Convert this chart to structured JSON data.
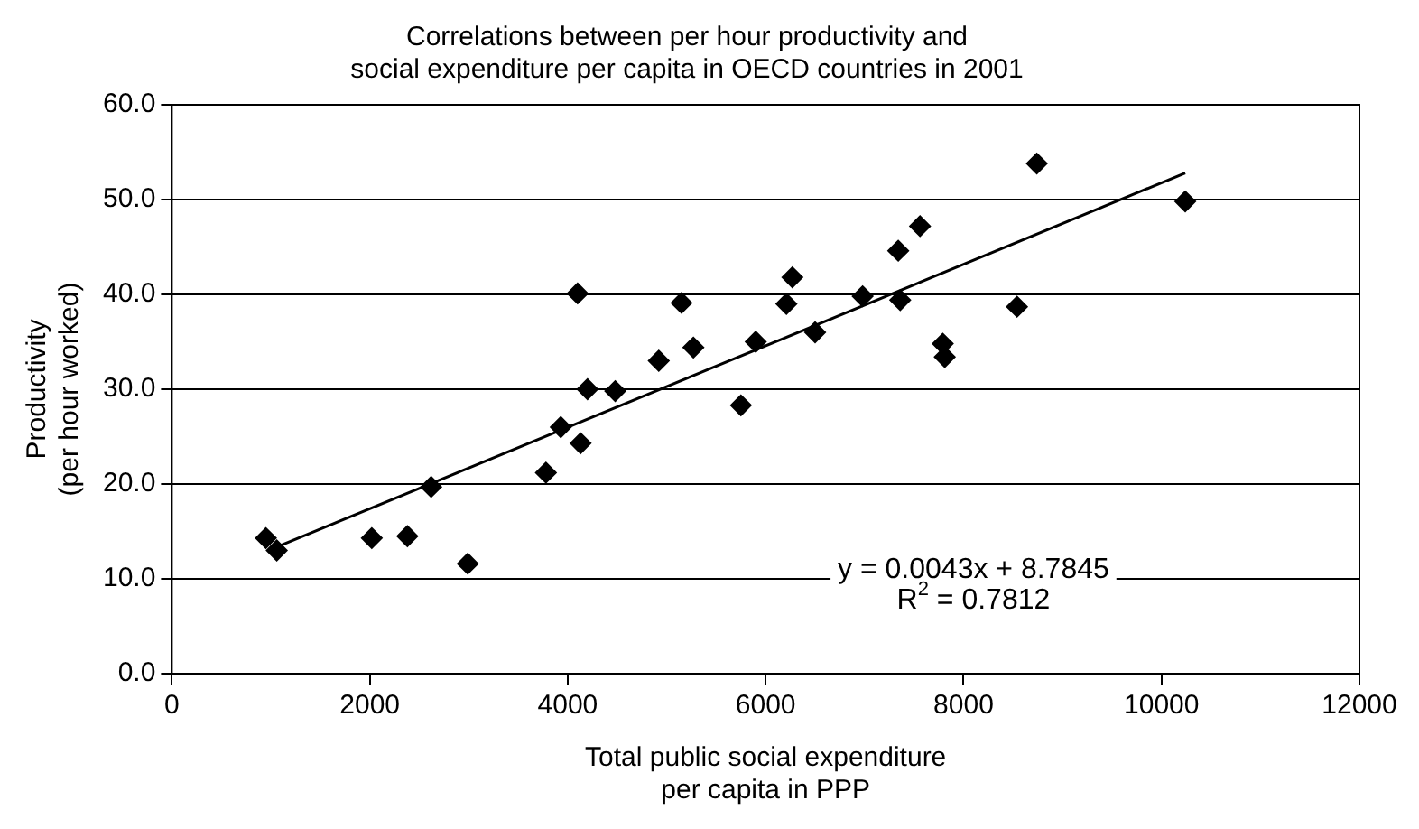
{
  "chart_data": {
    "type": "scatter",
    "title": [
      "Correlations between per hour productivity and",
      "social expenditure per capita in OECD countries in 2001"
    ],
    "xlabel": [
      "Total public social expenditure",
      "per capita in PPP"
    ],
    "ylabel": [
      "Productivity",
      "(per hour worked)"
    ],
    "series": [
      {
        "type": "scatter",
        "marker": "diamond",
        "color": "#000000",
        "x": [
          950,
          1060,
          2020,
          2380,
          2620,
          2990,
          3780,
          3930,
          4100,
          4130,
          4200,
          4480,
          4920,
          5150,
          5270,
          5750,
          5900,
          6210,
          6270,
          6500,
          6980,
          7340,
          7360,
          7560,
          7790,
          7810,
          8540,
          8740,
          10240
        ],
        "values": [
          14.3,
          13.0,
          14.3,
          14.5,
          19.7,
          11.6,
          21.2,
          26.0,
          40.1,
          24.3,
          30.0,
          29.8,
          33.0,
          39.1,
          34.4,
          28.3,
          35.0,
          39.0,
          41.8,
          36.0,
          39.8,
          44.6,
          39.4,
          47.2,
          34.8,
          33.4,
          38.7,
          53.8,
          49.8
        ]
      },
      {
        "type": "line",
        "marker": "none",
        "line_style": "solid",
        "color": "#000000",
        "x": [
          1000,
          10240
        ],
        "values": [
          13.1,
          52.8
        ]
      }
    ],
    "annotations": [
      "y = 0.0043x + 8.7845",
      "R$^{2}$ = 0.7812"
    ],
    "xlim": [
      0,
      12000
    ],
    "xticks": [
      0,
      2000,
      4000,
      6000,
      8000,
      10000,
      12000
    ],
    "ylim": [
      0,
      60
    ],
    "yticks": [
      {
        "value": 0,
        "label": "0.0"
      },
      {
        "value": 10,
        "label": "10.0"
      },
      {
        "value": 20,
        "label": "20.0"
      },
      {
        "value": 30,
        "label": "30.0"
      },
      {
        "value": 40,
        "label": "40.0"
      },
      {
        "value": 50,
        "label": "50.0"
      },
      {
        "value": 60,
        "label": "60.0"
      }
    ],
    "grid": "y"
  }
}
